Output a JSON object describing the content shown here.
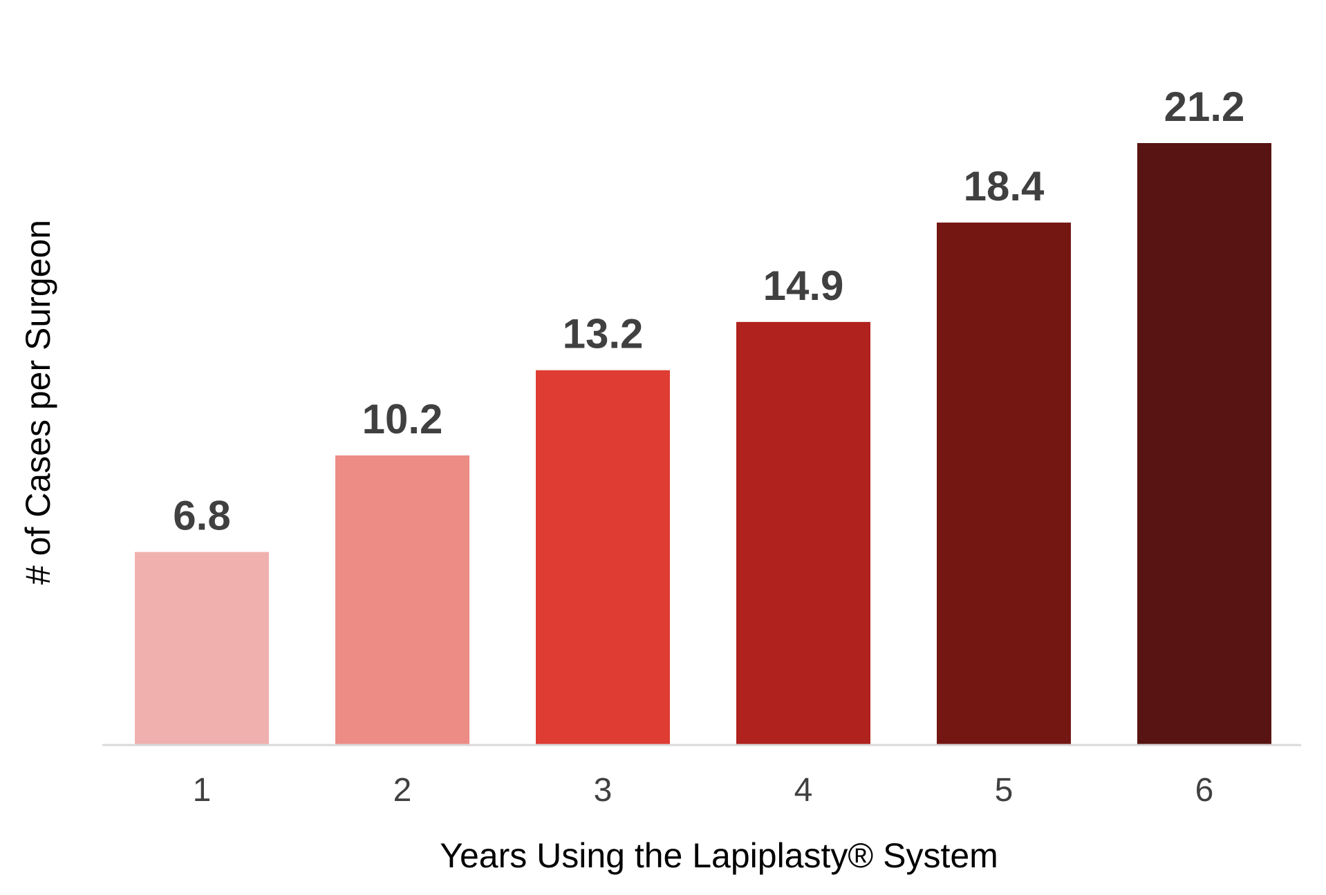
{
  "chart_data": {
    "type": "bar",
    "title": "",
    "xlabel": "Years Using the Lapiplasty® System",
    "ylabel": "# of Cases per Surgeon",
    "categories": [
      "1",
      "2",
      "3",
      "4",
      "5",
      "6"
    ],
    "values": [
      6.8,
      10.2,
      13.2,
      14.9,
      18.4,
      21.2
    ],
    "value_labels": [
      "6.8",
      "10.2",
      "13.2",
      "14.9",
      "18.4",
      "21.2"
    ],
    "colors": [
      "#f0b1ae",
      "#ec8c85",
      "#df3c33",
      "#b0221d",
      "#741713",
      "#581412"
    ],
    "axis_color": "#d9d9d9",
    "ylim": [
      0,
      21.2
    ],
    "grid": false,
    "legend": "none"
  }
}
